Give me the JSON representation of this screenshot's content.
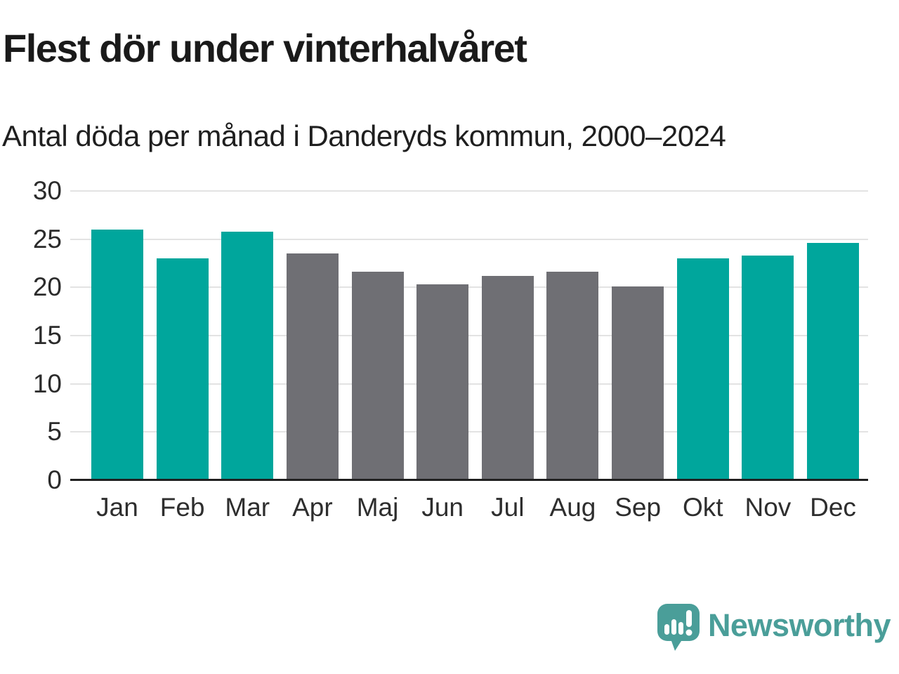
{
  "header": {
    "title": "Flest dör under vinterhalvåret",
    "subtitle": "Antal döda per månad i Danderyds kommun, 2000–2024"
  },
  "chart_data": {
    "type": "bar",
    "title": "Flest dör under vinterhalvåret",
    "subtitle": "Antal döda per månad i Danderyds kommun, 2000–2024",
    "categories": [
      "Jan",
      "Feb",
      "Mar",
      "Apr",
      "Maj",
      "Jun",
      "Jul",
      "Aug",
      "Sep",
      "Okt",
      "Nov",
      "Dec"
    ],
    "values": [
      26.0,
      23.0,
      25.8,
      23.5,
      21.6,
      20.3,
      21.2,
      21.6,
      20.1,
      23.0,
      23.3,
      24.6
    ],
    "highlighted": [
      true,
      true,
      true,
      false,
      false,
      false,
      false,
      false,
      false,
      true,
      true,
      true
    ],
    "xlabel": "",
    "ylabel": "",
    "ylim": [
      0,
      30
    ],
    "yticks": [
      0,
      5,
      10,
      15,
      20,
      25,
      30
    ],
    "grid": true,
    "legend": "none",
    "colors": {
      "highlight": "#00a69c",
      "default": "#6f6f74",
      "gridline": "#e3e3e3",
      "axis": "#202020"
    }
  },
  "branding": {
    "logo_text": "Newsworthy",
    "logo_icon": "newsworthy-speech-bubble-chart-icon",
    "color": "#4a9e99"
  }
}
